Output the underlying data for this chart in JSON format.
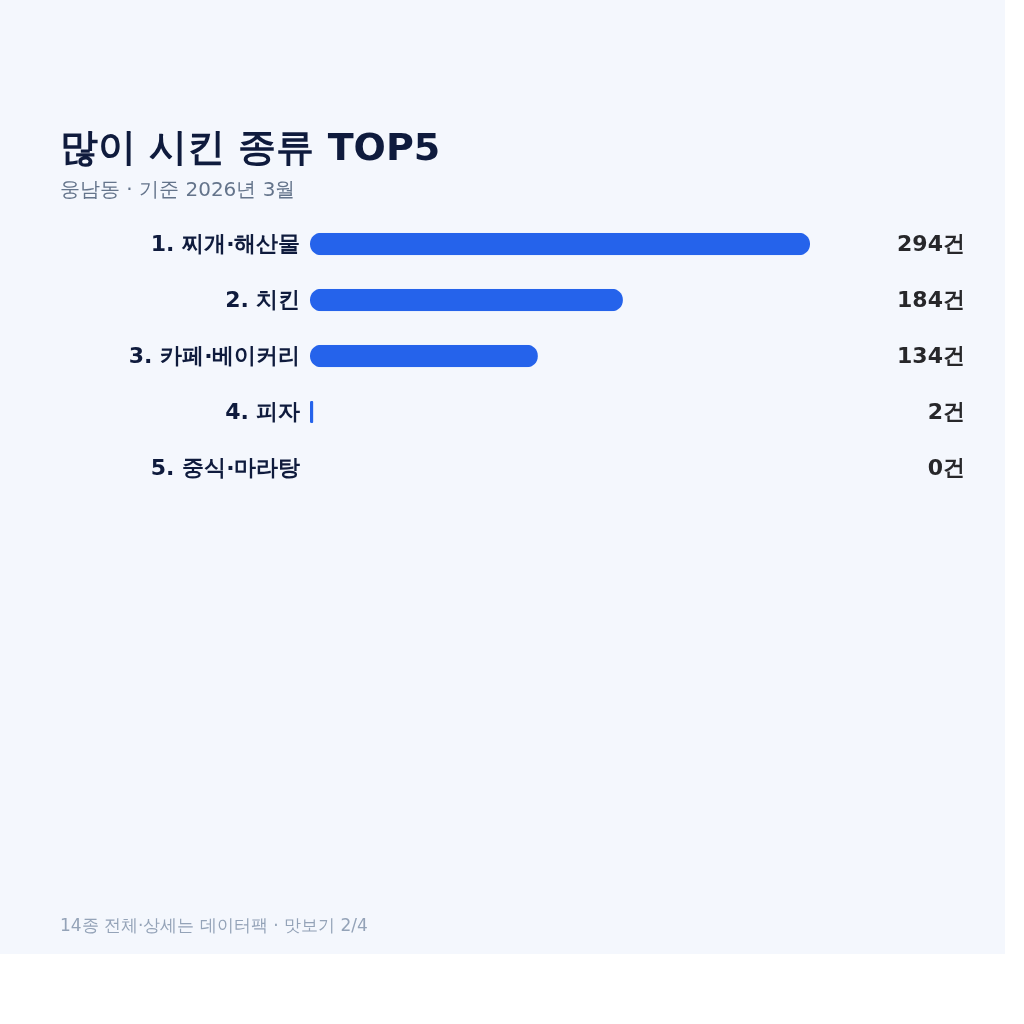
{
  "chart_data": {
    "type": "bar",
    "orientation": "horizontal",
    "title": "많이 시킨 종류 TOP5",
    "subtitle": "웅남동 · 기준 2026년 3월",
    "categories": [
      "1. 찌개·해산물",
      "2. 치킨",
      "3. 카페·베이커리",
      "4. 피자",
      "5. 중식·마라탕"
    ],
    "values": [
      294,
      184,
      134,
      2,
      0
    ],
    "color": "#2563eb",
    "value_labels": [
      "294건",
      "184건",
      "134건",
      "2건",
      "0건"
    ],
    "annotations": [
      "14종 전체·상세는 데이터팩 · 맛보기 2/4"
    ]
  }
}
